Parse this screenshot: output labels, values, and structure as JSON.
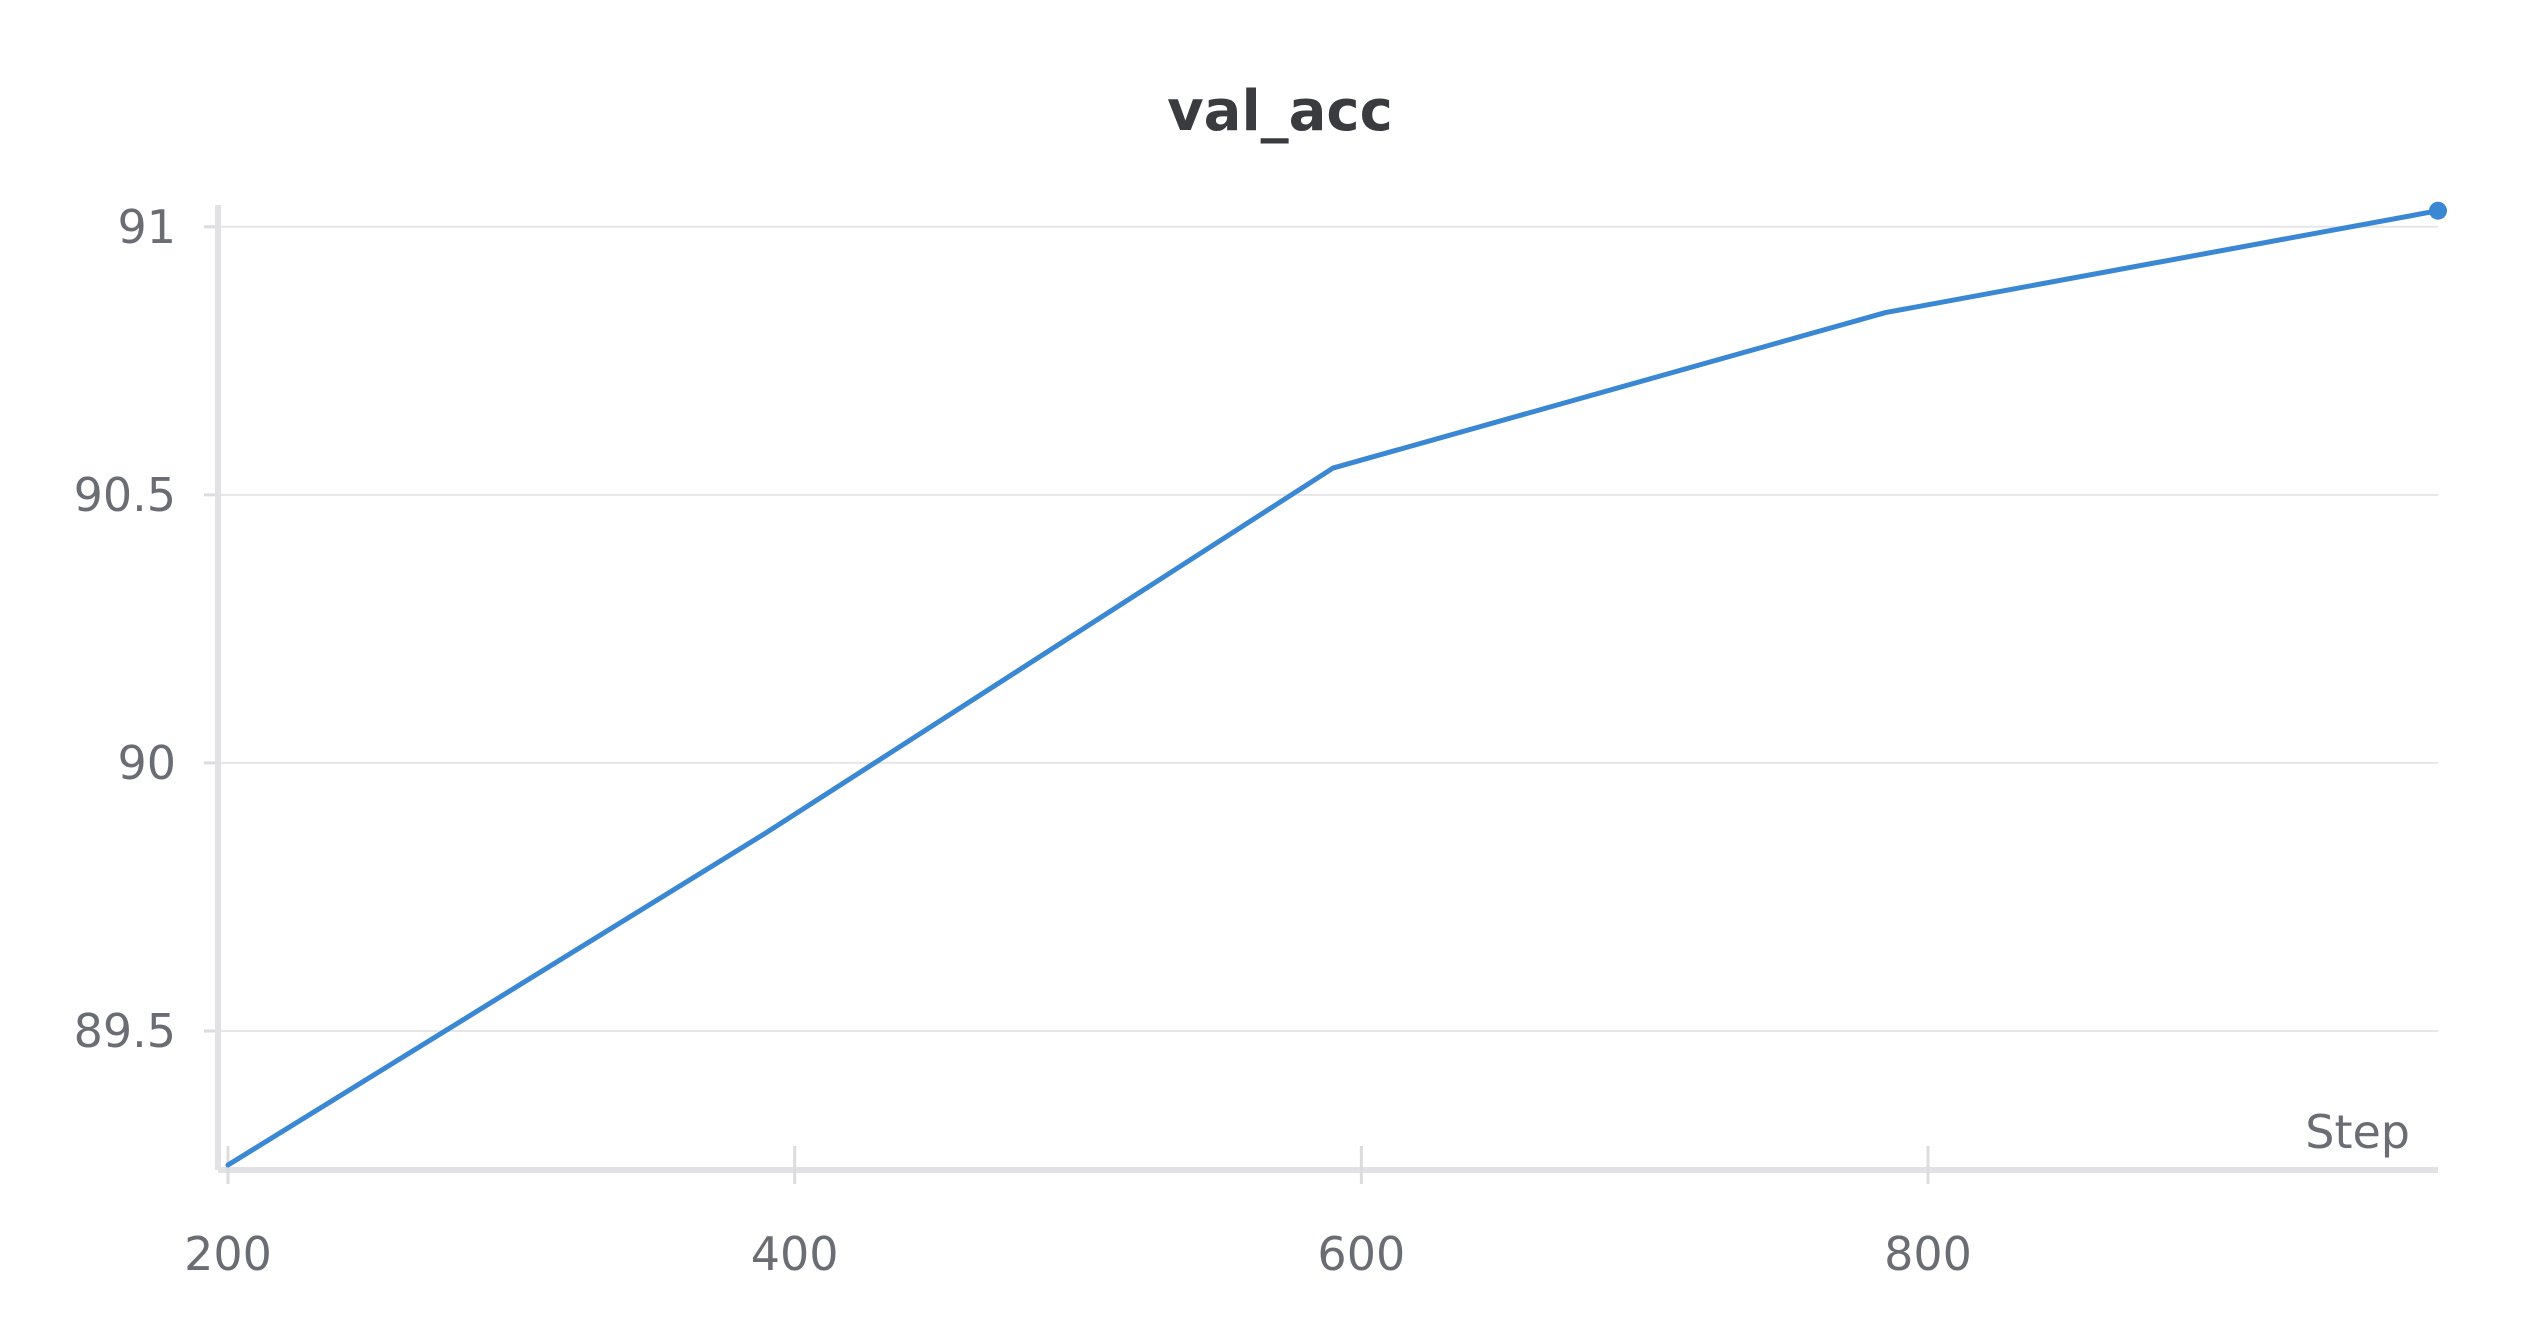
{
  "chart_data": {
    "type": "line",
    "title": "val_acc",
    "xlabel": "Step",
    "ylabel": "",
    "xlim": [
      200,
      980
    ],
    "ylim": [
      89.25,
      91.05
    ],
    "x_ticks": [
      200,
      400,
      600,
      800
    ],
    "x_tick_labels": [
      "200",
      "400",
      "600",
      "800"
    ],
    "y_ticks": [
      89.5,
      90,
      90.5,
      91
    ],
    "y_tick_labels": [
      "89.5",
      "90",
      "90.5",
      "91"
    ],
    "grid": true,
    "legend": "none",
    "series": [
      {
        "color": "#3a87d4",
        "x": [
          200,
          390,
          590,
          785,
          980
        ],
        "y": [
          89.25,
          89.87,
          90.55,
          90.84,
          91.03
        ]
      }
    ]
  }
}
